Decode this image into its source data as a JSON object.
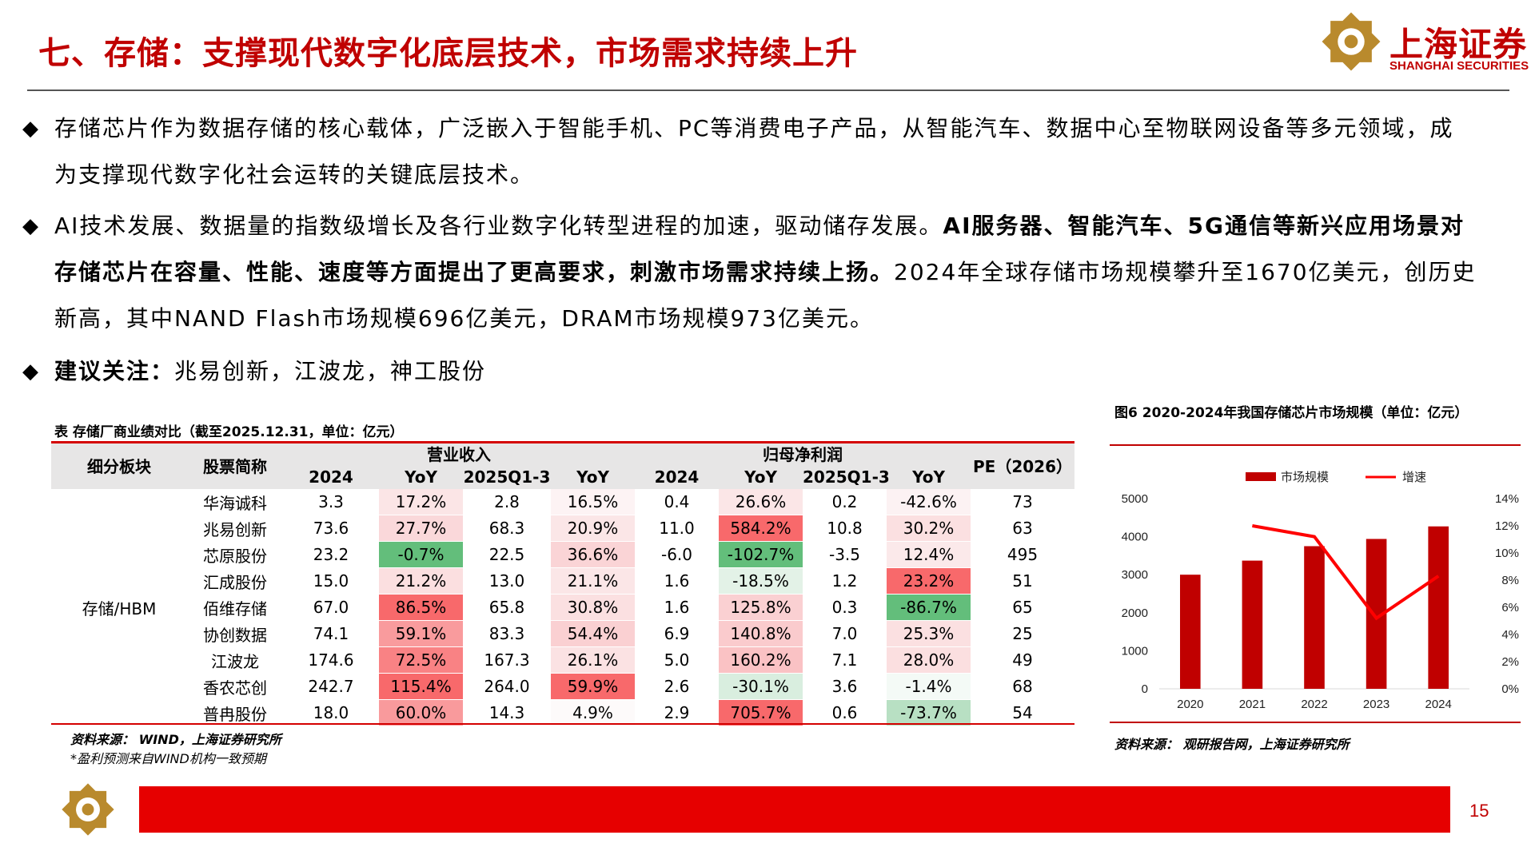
{
  "title": "七、存储：支撑现代数字化底层技术，市场需求持续上升",
  "logo": {
    "cn": "上海证券",
    "en": "SHANGHAI SECURITIES"
  },
  "bullets": {
    "b1": "存储芯片作为数据存储的核心载体，广泛嵌入于智能手机、PC等消费电子产品，从智能汽车、数据中心至物联网设备等多元领域，成为支撑现代数字化社会运转的关键底层技术。",
    "b2_pre": "AI技术发展、数据量的指数级增长及各行业数字化转型进程的加速，驱动储存发展。",
    "b2_bold": "AI服务器、智能汽车、5G通信等新兴应用场景对存储芯片在容量、性能、速度等方面提出了更高要求，刺激市场需求持续上扬。",
    "b2_post": "2024年全球存储市场规模攀升至1670亿美元，创历史新高，其中NAND Flash市场规模696亿美元，DRAM市场规模973亿美元。",
    "b3_bold": "建议关注：",
    "b3_text": "兆易创新，江波龙，神工股份"
  },
  "table": {
    "caption": "表 存储厂商业绩对比（截至2025.12.31，单位：亿元）",
    "head": {
      "segment": "细分板块",
      "stock": "股票简称",
      "revenue": "营业收入",
      "profit": "归母净利润",
      "pe": "PE（2026）",
      "sub": [
        "2024",
        "YoY",
        "2025Q1-3",
        "YoY",
        "2024",
        "YoY",
        "2025Q1-3",
        "YoY"
      ]
    },
    "segment_value": "存储/HBM",
    "rows": [
      {
        "name": "华海诚科",
        "cells": [
          "3.3",
          "17.2%",
          "2.8",
          "16.5%",
          "0.4",
          "26.6%",
          "0.2",
          "-42.6%"
        ],
        "pe": "73"
      },
      {
        "name": "兆易创新",
        "cells": [
          "73.6",
          "27.7%",
          "68.3",
          "20.9%",
          "11.0",
          "584.2%",
          "10.8",
          "30.2%"
        ],
        "pe": "63"
      },
      {
        "name": "芯原股份",
        "cells": [
          "23.2",
          "-0.7%",
          "22.5",
          "36.6%",
          "-6.0",
          "-102.7%",
          "-3.5",
          "12.4%"
        ],
        "pe": "495"
      },
      {
        "name": "汇成股份",
        "cells": [
          "15.0",
          "21.2%",
          "13.0",
          "21.1%",
          "1.6",
          "-18.5%",
          "1.2",
          "23.2%"
        ],
        "pe": "51"
      },
      {
        "name": "佰维存储",
        "cells": [
          "67.0",
          "86.5%",
          "65.8",
          "30.8%",
          "1.6",
          "125.8%",
          "0.3",
          "-86.7%"
        ],
        "pe": "65"
      },
      {
        "name": "协创数据",
        "cells": [
          "74.1",
          "59.1%",
          "83.3",
          "54.4%",
          "6.9",
          "140.8%",
          "7.0",
          "25.3%"
        ],
        "pe": "25"
      },
      {
        "name": "江波龙",
        "cells": [
          "174.6",
          "72.5%",
          "167.3",
          "26.1%",
          "5.0",
          "160.2%",
          "7.1",
          "28.0%"
        ],
        "pe": "49"
      },
      {
        "name": "香农芯创",
        "cells": [
          "242.7",
          "115.4%",
          "264.0",
          "59.9%",
          "2.6",
          "-30.1%",
          "3.6",
          "-1.4%"
        ],
        "pe": "68"
      },
      {
        "name": "普冉股份",
        "cells": [
          "18.0",
          "60.0%",
          "14.3",
          "4.9%",
          "2.9",
          "705.7%",
          "0.6",
          "-73.7%"
        ],
        "pe": "54"
      }
    ],
    "yoy_colors": [
      [
        "#fbe5e6",
        "#fdf3f4",
        "#fbe6e7",
        "#fcf2f3"
      ],
      [
        "#fad8da",
        "#fbe6e7",
        "#f8696b",
        "#fbe0e1"
      ],
      [
        "#63be7b",
        "#fad4d6",
        "#63be7b",
        "#fbe9ea"
      ],
      [
        "#fbdfe0",
        "#fbe6e7",
        "#e3f2e7",
        "#f8696b"
      ],
      [
        "#f8696b",
        "#fbe0e1",
        "#fad0d2",
        "#63be7b"
      ],
      [
        "#f99b9d",
        "#fad0d2",
        "#facbcd",
        "#fbe0e1"
      ],
      [
        "#f98284",
        "#fbe2e3",
        "#fac2c4",
        "#fbdfe0"
      ],
      [
        "#f8696b",
        "#f8696b",
        "#d9eedf",
        "#f4faf6"
      ],
      [
        "#f99a9c",
        "#fdfafa",
        "#f8696b",
        "#b8e0c3"
      ]
    ],
    "source": "资料来源： WIND，上海证券研究所",
    "note": "*盈利预测来自WIND机构一致预期"
  },
  "chart_data": {
    "type": "bar",
    "title": "图6 2020-2024年我国存储芯片市场规模（单位：亿元）",
    "categories": [
      "2020",
      "2021",
      "2022",
      "2023",
      "2024"
    ],
    "series": [
      {
        "name": "市场规模",
        "kind": "bar",
        "axis": "left",
        "color": "#c00000",
        "values": [
          3000,
          3370,
          3750,
          3940,
          4270
        ]
      },
      {
        "name": "增速",
        "kind": "line",
        "axis": "right",
        "color": "#ff0000",
        "values": [
          null,
          12.0,
          11.2,
          5.2,
          8.3
        ]
      }
    ],
    "ylim": [
      0,
      5000
    ],
    "yticks": [
      "0",
      "1000",
      "2000",
      "3000",
      "4000",
      "5000"
    ],
    "y2lim": [
      0,
      14
    ],
    "y2ticks": [
      "0%",
      "2%",
      "4%",
      "6%",
      "8%",
      "10%",
      "12%",
      "14%"
    ],
    "legend_position": "top",
    "grid": false,
    "source": "资料来源： 观研报告网，上海证券研究所"
  },
  "page_number": "15",
  "colors": {
    "brand_red": "#c00000",
    "bar_red": "#e60000",
    "logo_gold": "#b8860b"
  }
}
